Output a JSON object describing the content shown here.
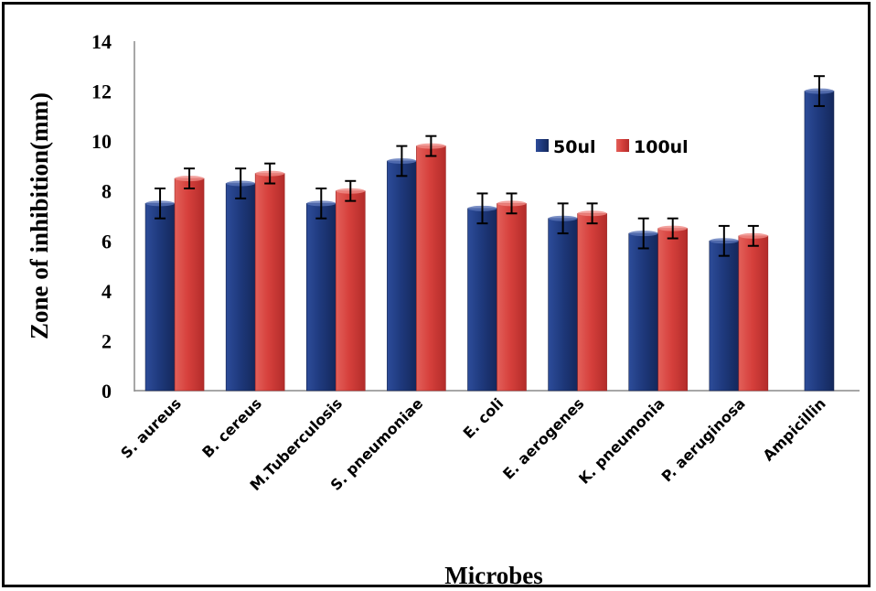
{
  "chart_data": {
    "type": "bar",
    "title": "",
    "xlabel": "Microbes",
    "ylabel": "Zone of inhibition(mm)",
    "ylim": [
      0,
      14
    ],
    "yticks": [
      0,
      2,
      4,
      6,
      8,
      10,
      12,
      14
    ],
    "categories": [
      "S. aureus",
      "B. cereus",
      "M.Tuberculosis",
      "S. pneumoniae",
      "E. coli",
      "E. aerogenes",
      "K. pneumonia",
      "P. aeruginosa",
      "Ampicillin"
    ],
    "series": [
      {
        "name": "50ul",
        "color": "#1f3a7a",
        "values": [
          7.5,
          8.3,
          7.5,
          9.2,
          7.3,
          6.9,
          6.3,
          6.0,
          12.0
        ],
        "errors": [
          0.6,
          0.6,
          0.6,
          0.6,
          0.6,
          0.6,
          0.6,
          0.6,
          0.6
        ]
      },
      {
        "name": "100ul",
        "color": "#d6403c",
        "values": [
          8.5,
          8.7,
          8.0,
          9.8,
          7.5,
          7.1,
          6.5,
          6.2,
          null
        ],
        "errors": [
          0.4,
          0.4,
          0.4,
          0.4,
          0.4,
          0.4,
          0.4,
          0.4,
          null
        ]
      }
    ],
    "legend": {
      "position": "upper-right-inside"
    },
    "grid": false,
    "error_bars": true
  }
}
